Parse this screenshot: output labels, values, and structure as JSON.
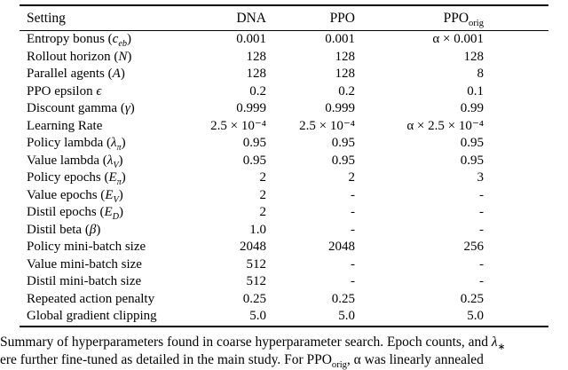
{
  "table": {
    "headers": {
      "setting": "Setting",
      "dna": "DNA",
      "ppo": "PPO",
      "ppo_orig_pre": "PPO",
      "ppo_orig_sub": "orig"
    },
    "rows": [
      {
        "label": {
          "pre": "Entropy bonus (",
          "math": "c",
          "sub": "eb",
          "post": ")"
        },
        "values": [
          "0.001",
          "0.001",
          "α × 0.001"
        ]
      },
      {
        "label": {
          "pre": "Rollout horizon (",
          "math": "N",
          "sub": "",
          "post": ")"
        },
        "values": [
          "128",
          "128",
          "128"
        ]
      },
      {
        "label": {
          "pre": "Parallel agents (",
          "math": "A",
          "sub": "",
          "post": ")"
        },
        "values": [
          "128",
          "128",
          "8"
        ]
      },
      {
        "label": {
          "pre": "PPO epsilon ",
          "math": "ϵ",
          "sub": "",
          "post": ""
        },
        "values": [
          "0.2",
          "0.2",
          "0.1"
        ]
      },
      {
        "label": {
          "pre": "Discount gamma (",
          "math": "γ",
          "sub": "",
          "post": ")"
        },
        "values": [
          "0.999",
          "0.999",
          "0.99"
        ]
      },
      {
        "label": {
          "pre": "Learning Rate",
          "math": "",
          "sub": "",
          "post": ""
        },
        "values": [
          "2.5 × 10⁻⁴",
          "2.5 × 10⁻⁴",
          "α × 2.5 × 10⁻⁴"
        ]
      },
      {
        "label": {
          "pre": "Policy lambda (",
          "math": "λ",
          "sub": "π",
          "post": ")"
        },
        "values": [
          "0.95",
          "0.95",
          "0.95"
        ]
      },
      {
        "label": {
          "pre": "Value lambda (",
          "math": "λ",
          "sub": "V",
          "post": ")"
        },
        "values": [
          "0.95",
          "0.95",
          "0.95"
        ]
      },
      {
        "label": {
          "pre": "Policy epochs (",
          "math": "E",
          "sub": "π",
          "post": ")"
        },
        "values": [
          "2",
          "2",
          "3"
        ]
      },
      {
        "label": {
          "pre": "Value epochs (",
          "math": "E",
          "sub": "V",
          "post": ")"
        },
        "values": [
          "2",
          "-",
          "-"
        ]
      },
      {
        "label": {
          "pre": "Distil epochs (",
          "math": "E",
          "sub": "D",
          "post": ")"
        },
        "values": [
          "2",
          "-",
          "-"
        ]
      },
      {
        "label": {
          "pre": "Distil beta (",
          "math": "β",
          "sub": "",
          "post": ")"
        },
        "values": [
          "1.0",
          "-",
          "-"
        ]
      },
      {
        "label": {
          "pre": "Policy mini-batch size",
          "math": "",
          "sub": "",
          "post": ""
        },
        "values": [
          "2048",
          "2048",
          "256"
        ]
      },
      {
        "label": {
          "pre": "Value mini-batch size",
          "math": "",
          "sub": "",
          "post": ""
        },
        "values": [
          "512",
          "-",
          "-"
        ]
      },
      {
        "label": {
          "pre": "Distil mini-batch size",
          "math": "",
          "sub": "",
          "post": ""
        },
        "values": [
          "512",
          "-",
          "-"
        ]
      },
      {
        "label": {
          "pre": "Repeated action penalty",
          "math": "",
          "sub": "",
          "post": ""
        },
        "values": [
          "0.25",
          "0.25",
          "0.25"
        ]
      },
      {
        "label": {
          "pre": "Global gradient clipping",
          "math": "",
          "sub": "",
          "post": ""
        },
        "values": [
          "5.0",
          "5.0",
          "5.0"
        ]
      }
    ]
  },
  "caption": {
    "line1_text": "Summary of hyperparameters found in coarse hyperparameter search. Epoch counts, and ",
    "line1_math": "λ",
    "line1_sub": "∗",
    "line2_pre": "ere further fine-tuned as detailed in the main study. For PPO",
    "line2_sub": "orig",
    "line2_post": ", α was linearly annealed"
  }
}
